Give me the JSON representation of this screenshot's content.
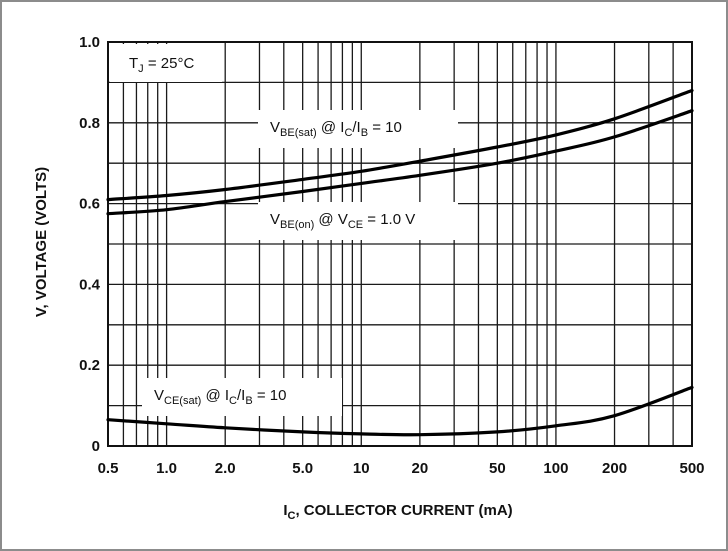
{
  "chart_data": {
    "type": "line",
    "x_scale": "log",
    "xlim": [
      0.5,
      500
    ],
    "ylim": [
      0,
      1.0
    ],
    "grid": true,
    "x_ticks": [
      "0.5",
      "1.0",
      "2.0",
      "5.0",
      "10",
      "20",
      "50",
      "100",
      "200",
      "500"
    ],
    "y_ticks": [
      "0",
      "0.2",
      "0.4",
      "0.6",
      "0.8",
      "1.0"
    ],
    "xlabel": {
      "main": "I",
      "sub": "C",
      "rest": ", COLLECTOR CURRENT (mA)"
    },
    "ylabel": "V, VOLTAGE (VOLTS)",
    "annotations": {
      "tj": {
        "main": "T",
        "sub": "J",
        "rest": " = 25°C"
      },
      "vbe_sat": {
        "v": "V",
        "vsub": "BE(sat)",
        "at": " @ I",
        "isub": "C",
        "slash": "/I",
        "bsub": "B",
        "rest": " = 10"
      },
      "vbe_on": {
        "v": "V",
        "vsub": "BE(on)",
        "at": " @ V",
        "csub": "CE",
        "rest": " = 1.0 V"
      },
      "vce_sat": {
        "v": "V",
        "vsub": "CE(sat)",
        "at": " @ I",
        "isub": "C",
        "slash": "/I",
        "bsub": "B",
        "rest": " = 10"
      }
    },
    "series": [
      {
        "name": "VBE(sat) @ IC/IB = 10",
        "x": [
          0.5,
          1,
          2,
          5,
          10,
          20,
          50,
          100,
          200,
          500
        ],
        "y": [
          0.61,
          0.62,
          0.635,
          0.66,
          0.68,
          0.705,
          0.74,
          0.77,
          0.81,
          0.88
        ]
      },
      {
        "name": "VBE(on) @ VCE = 1.0 V",
        "x": [
          0.5,
          1,
          2,
          5,
          10,
          20,
          50,
          100,
          200,
          500
        ],
        "y": [
          0.575,
          0.585,
          0.605,
          0.63,
          0.65,
          0.67,
          0.7,
          0.73,
          0.765,
          0.83
        ]
      },
      {
        "name": "VCE(sat) @ IC/IB = 10",
        "x": [
          0.5,
          1,
          2,
          5,
          10,
          20,
          50,
          100,
          200,
          500
        ],
        "y": [
          0.065,
          0.055,
          0.045,
          0.035,
          0.03,
          0.028,
          0.035,
          0.05,
          0.075,
          0.145
        ]
      }
    ]
  }
}
